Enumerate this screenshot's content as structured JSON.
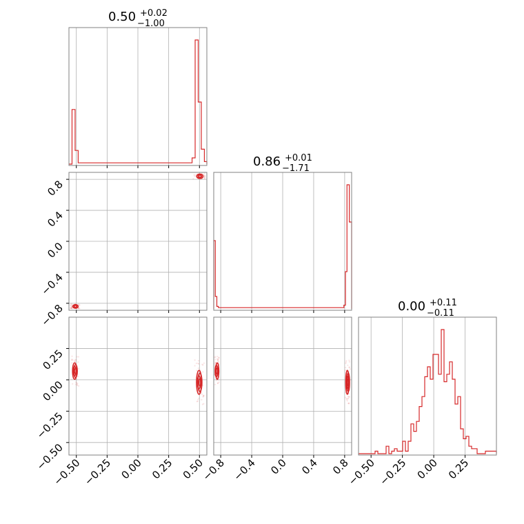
{
  "chart_data": {
    "type": "corner",
    "color": "#d62728",
    "grid": true,
    "parameters": [
      {
        "title_value": "0.50",
        "title_plus": "+0.02",
        "title_minus": "−1.00",
        "range": [
          -0.56,
          0.56
        ],
        "ticks": [
          "−0.50",
          "−0.25",
          "0.00",
          "0.25",
          "0.50"
        ],
        "tick_values": [
          -0.5,
          -0.25,
          0.0,
          0.25,
          0.5
        ]
      },
      {
        "title_value": "0.86",
        "title_plus": "+0.01",
        "title_minus": "−1.71",
        "range": [
          -0.89,
          0.89
        ],
        "ticks": [
          "−0.8",
          "−0.4",
          "0.0",
          "0.4",
          "0.8"
        ],
        "tick_values": [
          -0.8,
          -0.4,
          0.0,
          0.4,
          0.8
        ]
      },
      {
        "title_value": "0.00",
        "title_plus": "+0.11",
        "title_minus": "−0.11",
        "range": [
          -0.6,
          0.5
        ],
        "ticks": [
          "−0.50",
          "−0.25",
          "0.00",
          "0.25"
        ],
        "tick_values": [
          -0.5,
          -0.25,
          0.0,
          0.25
        ]
      }
    ],
    "row1_yticks": [
      "0.8",
      "0.4",
      "0.0",
      "−0.4",
      "−0.8"
    ],
    "row1_ytick_values": [
      0.8,
      0.4,
      0.0,
      -0.4,
      -0.8
    ],
    "row2_yticks": [
      "0.25",
      "0.00",
      "−0.25",
      "−0.50"
    ],
    "row2_ytick_values": [
      0.25,
      0.0,
      -0.25,
      -0.5
    ],
    "hist1": [
      {
        "x0": -0.56,
        "x1": -0.535,
        "v": 0.0
      },
      {
        "x0": -0.535,
        "x1": -0.51,
        "v": 0.44
      },
      {
        "x0": -0.51,
        "x1": -0.485,
        "v": 0.11
      },
      {
        "x0": -0.485,
        "x1": 0.44,
        "v": 0.01
      },
      {
        "x0": 0.44,
        "x1": 0.465,
        "v": 0.05
      },
      {
        "x0": 0.465,
        "x1": 0.49,
        "v": 1.0
      },
      {
        "x0": 0.49,
        "x1": 0.515,
        "v": 0.5
      },
      {
        "x0": 0.515,
        "x1": 0.54,
        "v": 0.12
      },
      {
        "x0": 0.54,
        "x1": 0.56,
        "v": 0.02
      }
    ],
    "hist2": [
      {
        "x0": -0.89,
        "x1": -0.87,
        "v": 0.55
      },
      {
        "x0": -0.87,
        "x1": -0.85,
        "v": 0.1
      },
      {
        "x0": -0.85,
        "x1": -0.83,
        "v": 0.02
      },
      {
        "x0": -0.83,
        "x1": 0.79,
        "v": 0.01
      },
      {
        "x0": 0.79,
        "x1": 0.81,
        "v": 0.03
      },
      {
        "x0": 0.81,
        "x1": 0.83,
        "v": 0.3
      },
      {
        "x0": 0.83,
        "x1": 0.86,
        "v": 1.0
      },
      {
        "x0": 0.86,
        "x1": 0.89,
        "v": 0.7
      }
    ],
    "hist3": {
      "x0": -0.6,
      "bin_width": 0.022,
      "values": [
        0,
        0,
        0,
        0,
        0,
        0,
        0.02,
        0,
        0,
        0,
        0.06,
        0,
        0.02,
        0.04,
        0.02,
        0.02,
        0.1,
        0.02,
        0.1,
        0.24,
        0.18,
        0.26,
        0.38,
        0.46,
        0.62,
        0.7,
        0.6,
        0.8,
        0.8,
        0.64,
        1.0,
        0.58,
        0.64,
        0.74,
        0.6,
        0.4,
        0.46,
        0.2,
        0.12,
        0.14,
        0.06,
        0.04,
        0.04,
        0,
        0,
        0,
        0.02,
        0.02,
        0.02,
        0.02
      ]
    },
    "blobs_21": [
      {
        "x": 0.5,
        "y": 0.84,
        "rx": 0.02,
        "ry": 0.02,
        "n": 3
      },
      {
        "x": -0.51,
        "y": -0.84,
        "rx": 0.015,
        "ry": 0.015,
        "n": 3
      }
    ],
    "blobs_31": [
      {
        "x": -0.51,
        "y": 0.07,
        "rx": 0.012,
        "ry": 0.06,
        "n": 4
      },
      {
        "x": 0.5,
        "y": -0.02,
        "rx": 0.015,
        "ry": 0.09,
        "n": 4
      }
    ],
    "blobs_32": [
      {
        "x": -0.85,
        "y": 0.07,
        "rx": 0.012,
        "ry": 0.06,
        "n": 3
      },
      {
        "x": 0.84,
        "y": -0.02,
        "rx": 0.012,
        "ry": 0.09,
        "n": 4
      }
    ]
  }
}
